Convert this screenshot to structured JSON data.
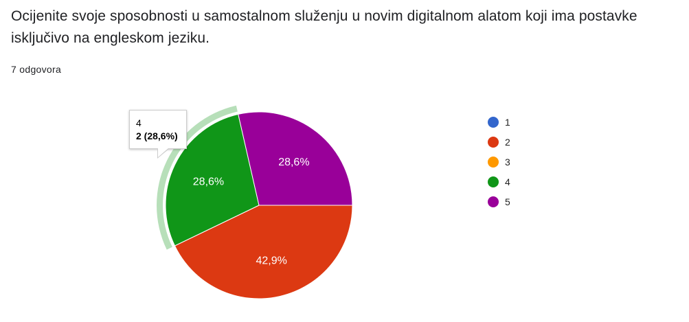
{
  "question": {
    "title": "Ocijenite svoje sposobnosti u samostalnom služenju u novim digitalnom alatom koji ima postavke isključivo na engleskom jeziku.",
    "response_count": "7 odgovora"
  },
  "tooltip": {
    "category": "4",
    "value": "2 (28,6%)"
  },
  "chart_data": {
    "type": "pie",
    "categories": [
      "1",
      "2",
      "3",
      "4",
      "5"
    ],
    "values": [
      0,
      3,
      0,
      2,
      2
    ],
    "percent_labels": [
      "",
      "42,9%",
      "",
      "28,6%",
      "28,6%"
    ],
    "colors": [
      "#3366cc",
      "#dc3912",
      "#ff9900",
      "#109618",
      "#990099"
    ],
    "legend_position": "right",
    "highlighted_category": "4"
  }
}
